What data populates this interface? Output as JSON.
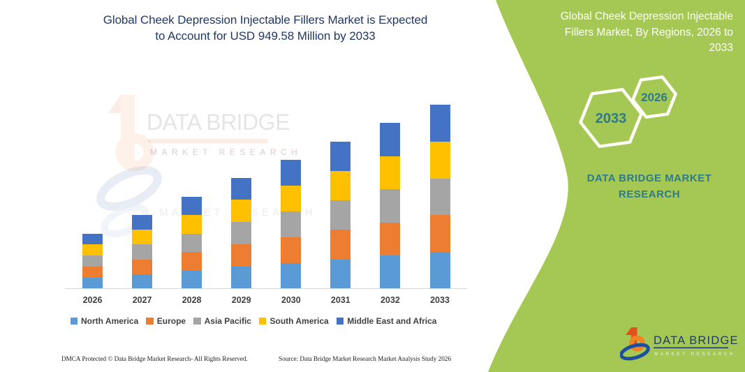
{
  "colors": {
    "panel_green": "#a5c854",
    "headline_navy": "#1f3864",
    "brand_teal": "#2e7b8d",
    "axis_gray": "#d9d9d9",
    "label_gray": "#404040"
  },
  "header": {
    "title_line1": "Global Cheek Depression Injectable Fillers Market is Expected",
    "title_line2": "to Account for USD 949.58 Million by 2033"
  },
  "right_panel": {
    "title_lines": [
      "Global Cheek Depression Injectable",
      "Fillers Market, By Regions, 2026 to",
      "2033"
    ],
    "hexagons": [
      {
        "label": "2033"
      },
      {
        "label": "2026"
      }
    ],
    "brand_line1": "DATA BRIDGE MARKET",
    "brand_line2": "RESEARCH",
    "logo": {
      "name_text": "DATA BRIDGE",
      "sub_text": "MARKET RESEARCH"
    }
  },
  "watermark": {
    "line1": "DATA BRIDGE",
    "line2": "MARKET RESEARCH"
  },
  "footer": {
    "left": "DMCA Protected © Data Bridge Market Research-  All Rights Reserved.",
    "right": "Source: Data Bridge Market Research  Market Analysis Study 2026"
  },
  "chart_data": {
    "type": "bar",
    "stacked": true,
    "grid": false,
    "value_axis_visible": false,
    "legend_position": "bottom",
    "unit": "USD Million",
    "categories": [
      "2026",
      "2027",
      "2028",
      "2029",
      "2030",
      "2031",
      "2032",
      "2033"
    ],
    "series": [
      {
        "name": "North America",
        "color": "#5B9BD5",
        "values": [
          57.1,
          76.2,
          94.9,
          114.7,
          133.6,
          152.2,
          171.4,
          189.9
        ]
      },
      {
        "name": "Europe",
        "color": "#ED7D31",
        "values": [
          57.1,
          76.2,
          94.9,
          114.7,
          133.6,
          152.2,
          171.4,
          189.9
        ]
      },
      {
        "name": "Asia Pacific",
        "color": "#A5A5A5",
        "values": [
          57.1,
          76.2,
          94.9,
          114.7,
          133.6,
          152.2,
          171.4,
          189.9
        ]
      },
      {
        "name": "South America",
        "color": "#FFC000",
        "values": [
          57.1,
          76.2,
          94.9,
          114.7,
          133.6,
          152.2,
          171.4,
          189.9
        ]
      },
      {
        "name": "Middle East and Africa",
        "color": "#4472C4",
        "values": [
          57.1,
          76.2,
          94.9,
          114.7,
          133.6,
          152.2,
          171.4,
          190.0
        ]
      }
    ],
    "totals": [
      285.5,
      381.0,
      474.5,
      573.5,
      668.0,
      761.0,
      857.0,
      949.58
    ]
  }
}
